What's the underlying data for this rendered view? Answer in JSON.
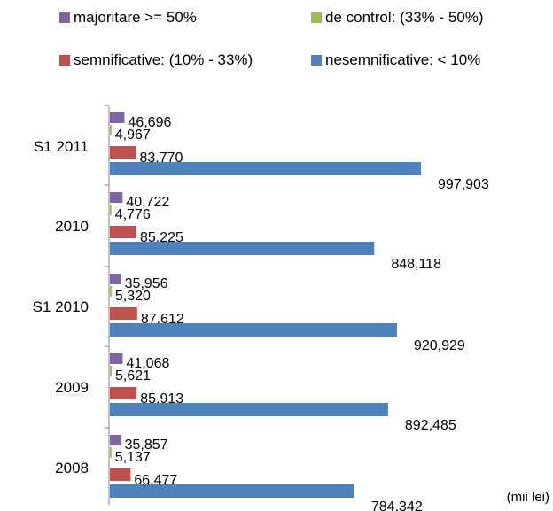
{
  "chart_data": {
    "type": "bar",
    "orientation": "horizontal",
    "categories": [
      "S1 2011",
      "2010",
      "S1 2010",
      "2009",
      "2008"
    ],
    "series": [
      {
        "name": "majoritare >= 50%",
        "color": "#8064A2",
        "values": [
          46696,
          40722,
          35956,
          41068,
          35857
        ],
        "labels": [
          "46,696",
          "40,722",
          "35,956",
          "41,068",
          "35,857"
        ]
      },
      {
        "name": "de control: (33% - 50%)",
        "color": "#9BBB59",
        "values": [
          4967,
          4776,
          5320,
          5621,
          5137
        ],
        "labels": [
          "4,967",
          "4,776",
          "5,320",
          "5,621",
          "5,137"
        ]
      },
      {
        "name": "semnificative: (10% - 33%)",
        "color": "#C0504D",
        "values": [
          83770,
          85225,
          87612,
          85913,
          66477
        ],
        "labels": [
          "83,770",
          "85,225",
          "87,612",
          "85,913",
          "66,477"
        ]
      },
      {
        "name": "nesemnificative: < 10%",
        "color": "#4F81BD",
        "values": [
          997903,
          848118,
          920929,
          892485,
          784342
        ],
        "labels": [
          "997,903",
          "848,118",
          "920,929",
          "892,485",
          "784,342"
        ]
      }
    ],
    "unit_label": "(mii lei)",
    "legend_position": "top",
    "grid": false
  }
}
